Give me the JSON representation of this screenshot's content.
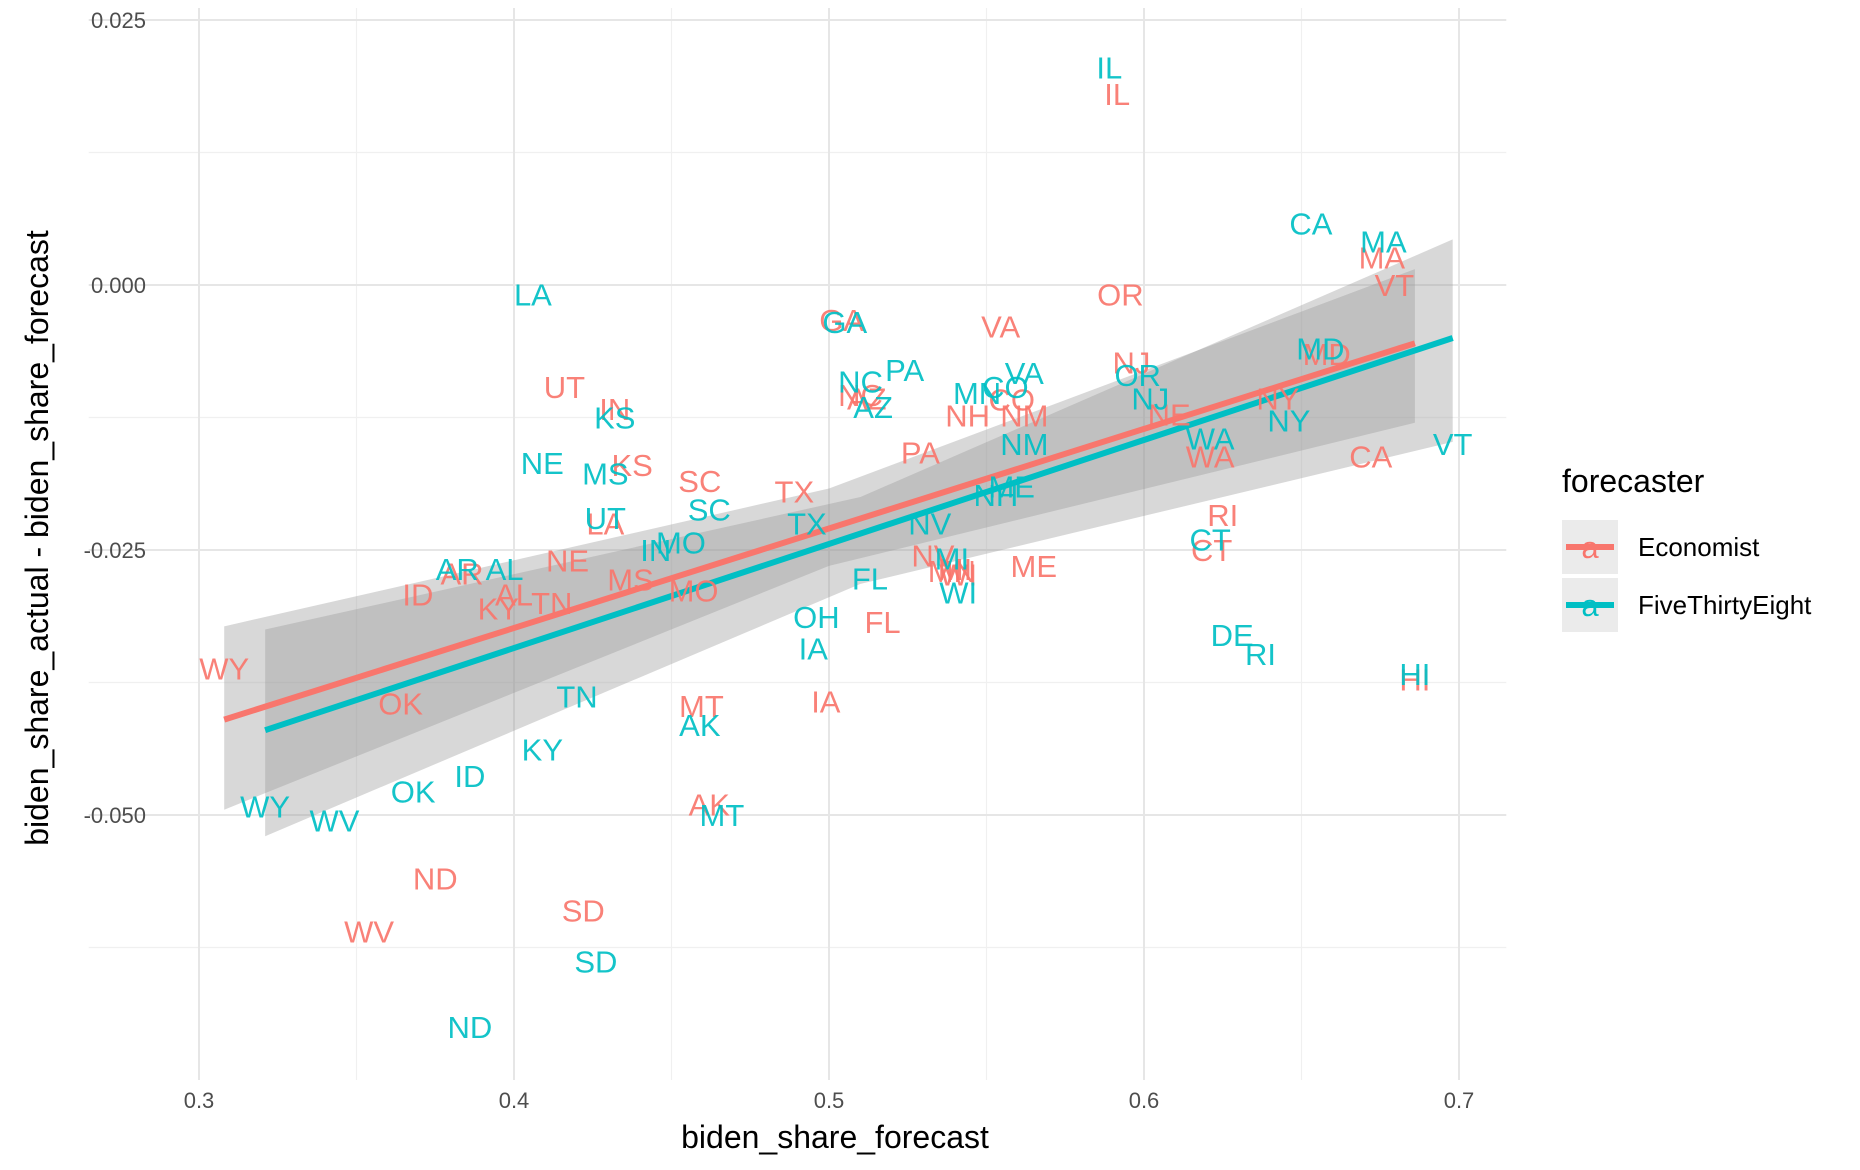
{
  "chart_data": {
    "type": "scatter",
    "xlabel": "biden_share_forecast",
    "ylabel": "biden_share_actual - biden_share_forecast",
    "xlim": [
      0.3,
      0.7
    ],
    "ylim": [
      -0.075,
      0.025
    ],
    "x_ticks": [
      {
        "value": 0.3,
        "label": "0.3"
      },
      {
        "value": 0.4,
        "label": "0.4"
      },
      {
        "value": 0.5,
        "label": "0.5"
      },
      {
        "value": 0.6,
        "label": "0.6"
      },
      {
        "value": 0.7,
        "label": "0.7"
      }
    ],
    "y_ticks": [
      {
        "value": 0.025,
        "label": "0.025"
      },
      {
        "value": 0.0,
        "label": "0.000"
      },
      {
        "value": -0.025,
        "label": "-0.025"
      },
      {
        "value": -0.05,
        "label": "-0.050"
      }
    ],
    "grid": true,
    "legend": {
      "title": "forecaster",
      "position": "right",
      "key_glyph": "a"
    },
    "series": [
      {
        "name": "Economist",
        "color": "#F8766D",
        "points": [
          {
            "label": "IL",
            "x": 0.5915,
            "y": 0.018
          },
          {
            "label": "MA",
            "x": 0.6755,
            "y": 0.0026
          },
          {
            "label": "VT",
            "x": 0.6795,
            "y": 0.0
          },
          {
            "label": "OR",
            "x": 0.5925,
            "y": -0.0009
          },
          {
            "label": "GA",
            "x": 0.504,
            "y": -0.0033
          },
          {
            "label": "VA",
            "x": 0.5545,
            "y": -0.0039
          },
          {
            "label": "MD",
            "x": 0.658,
            "y": -0.0065
          },
          {
            "label": "NJ",
            "x": 0.596,
            "y": -0.0073
          },
          {
            "label": "UT",
            "x": 0.416,
            "y": -0.0096
          },
          {
            "label": "IN",
            "x": 0.432,
            "y": -0.0117
          },
          {
            "label": "NC",
            "x": 0.51,
            "y": -0.0104
          },
          {
            "label": "AZ",
            "x": 0.512,
            "y": -0.0107
          },
          {
            "label": "CO",
            "x": 0.558,
            "y": -0.0108
          },
          {
            "label": "NY",
            "x": 0.6425,
            "y": -0.0107
          },
          {
            "label": "NE",
            "x": 0.608,
            "y": -0.0122
          },
          {
            "label": "NH",
            "x": 0.544,
            "y": -0.0123
          },
          {
            "label": "NM",
            "x": 0.562,
            "y": -0.0123
          },
          {
            "label": "PA",
            "x": 0.529,
            "y": -0.0158
          },
          {
            "label": "WA",
            "x": 0.621,
            "y": -0.0162
          },
          {
            "label": "CA",
            "x": 0.672,
            "y": -0.0162
          },
          {
            "label": "KS",
            "x": 0.4375,
            "y": -0.017
          },
          {
            "label": "SC",
            "x": 0.459,
            "y": -0.0185
          },
          {
            "label": "TX",
            "x": 0.489,
            "y": -0.0195
          },
          {
            "label": "RI",
            "x": 0.625,
            "y": -0.0217
          },
          {
            "label": "LA",
            "x": 0.429,
            "y": -0.0225
          },
          {
            "label": "CT",
            "x": 0.6215,
            "y": -0.025
          },
          {
            "label": "NV",
            "x": 0.533,
            "y": -0.0255
          },
          {
            "label": "MN",
            "x": 0.539,
            "y": -0.027
          },
          {
            "label": "MI",
            "x": 0.54,
            "y": -0.0268
          },
          {
            "label": "WI",
            "x": 0.541,
            "y": -0.0273
          },
          {
            "label": "ME",
            "x": 0.565,
            "y": -0.0265
          },
          {
            "label": "NE",
            "x": 0.417,
            "y": -0.026
          },
          {
            "label": "AR",
            "x": 0.3835,
            "y": -0.0272
          },
          {
            "label": "MS",
            "x": 0.437,
            "y": -0.0278
          },
          {
            "label": "MO",
            "x": 0.457,
            "y": -0.0288
          },
          {
            "label": "AL",
            "x": 0.4,
            "y": -0.0292
          },
          {
            "label": "ID",
            "x": 0.3695,
            "y": -0.0292
          },
          {
            "label": "KY",
            "x": 0.395,
            "y": -0.0305
          },
          {
            "label": "TN",
            "x": 0.412,
            "y": -0.03
          },
          {
            "label": "FL",
            "x": 0.517,
            "y": -0.0318
          },
          {
            "label": "HI",
            "x": 0.686,
            "y": -0.0372
          },
          {
            "label": "WY",
            "x": 0.308,
            "y": -0.0362
          },
          {
            "label": "MT",
            "x": 0.4595,
            "y": -0.0397
          },
          {
            "label": "IA",
            "x": 0.499,
            "y": -0.0393
          },
          {
            "label": "OK",
            "x": 0.364,
            "y": -0.0395
          },
          {
            "label": "AK",
            "x": 0.462,
            "y": -0.049
          },
          {
            "label": "ND",
            "x": 0.375,
            "y": -0.056
          },
          {
            "label": "SD",
            "x": 0.422,
            "y": -0.059
          },
          {
            "label": "WV",
            "x": 0.354,
            "y": -0.061
          }
        ],
        "fit": {
          "x0": 0.308,
          "y0": -0.041,
          "x1": 0.686,
          "y1": -0.0055
        }
      },
      {
        "name": "FiveThirtyEight",
        "color": "#00BFC4",
        "points": [
          {
            "label": "IL",
            "x": 0.589,
            "y": 0.0205
          },
          {
            "label": "CA",
            "x": 0.653,
            "y": 0.0058
          },
          {
            "label": "MA",
            "x": 0.676,
            "y": 0.0041
          },
          {
            "label": "LA",
            "x": 0.406,
            "y": -0.0009
          },
          {
            "label": "GA",
            "x": 0.505,
            "y": -0.0035
          },
          {
            "label": "PA",
            "x": 0.524,
            "y": -0.008
          },
          {
            "label": "VA",
            "x": 0.562,
            "y": -0.0083
          },
          {
            "label": "NC",
            "x": 0.51,
            "y": -0.0091
          },
          {
            "label": "OR",
            "x": 0.598,
            "y": -0.0085
          },
          {
            "label": "MD",
            "x": 0.656,
            "y": -0.006
          },
          {
            "label": "MN",
            "x": 0.547,
            "y": -0.0102
          },
          {
            "label": "CO",
            "x": 0.556,
            "y": -0.0096
          },
          {
            "label": "NJ",
            "x": 0.602,
            "y": -0.0107
          },
          {
            "label": "AZ",
            "x": 0.514,
            "y": -0.0115
          },
          {
            "label": "KS",
            "x": 0.432,
            "y": -0.0125
          },
          {
            "label": "NY",
            "x": 0.646,
            "y": -0.0128
          },
          {
            "label": "WA",
            "x": 0.621,
            "y": -0.0145
          },
          {
            "label": "VT",
            "x": 0.698,
            "y": -0.015
          },
          {
            "label": "NM",
            "x": 0.562,
            "y": -0.015
          },
          {
            "label": "NE",
            "x": 0.409,
            "y": -0.0168
          },
          {
            "label": "MS",
            "x": 0.429,
            "y": -0.0178
          },
          {
            "label": "ME",
            "x": 0.558,
            "y": -0.019
          },
          {
            "label": "NH",
            "x": 0.553,
            "y": -0.0198
          },
          {
            "label": "SC",
            "x": 0.462,
            "y": -0.0212
          },
          {
            "label": "UT",
            "x": 0.429,
            "y": -0.022
          },
          {
            "label": "TX",
            "x": 0.493,
            "y": -0.0225
          },
          {
            "label": "NV",
            "x": 0.532,
            "y": -0.0225
          },
          {
            "label": "CT",
            "x": 0.621,
            "y": -0.024
          },
          {
            "label": "MO",
            "x": 0.453,
            "y": -0.0243
          },
          {
            "label": "IN",
            "x": 0.445,
            "y": -0.025
          },
          {
            "label": "MI",
            "x": 0.539,
            "y": -0.0258
          },
          {
            "label": "AR",
            "x": 0.382,
            "y": -0.0268
          },
          {
            "label": "AL",
            "x": 0.397,
            "y": -0.0268
          },
          {
            "label": "FL",
            "x": 0.513,
            "y": -0.0277
          },
          {
            "label": "WI",
            "x": 0.541,
            "y": -0.029
          },
          {
            "label": "OH",
            "x": 0.496,
            "y": -0.0313
          },
          {
            "label": "DE",
            "x": 0.628,
            "y": -0.033
          },
          {
            "label": "IA",
            "x": 0.495,
            "y": -0.0343
          },
          {
            "label": "RI",
            "x": 0.637,
            "y": -0.0348
          },
          {
            "label": "HI",
            "x": 0.686,
            "y": -0.0367
          },
          {
            "label": "TN",
            "x": 0.42,
            "y": -0.0388
          },
          {
            "label": "AK",
            "x": 0.459,
            "y": -0.0415
          },
          {
            "label": "KY",
            "x": 0.409,
            "y": -0.0438
          },
          {
            "label": "ID",
            "x": 0.386,
            "y": -0.0463
          },
          {
            "label": "OK",
            "x": 0.368,
            "y": -0.0478
          },
          {
            "label": "WY",
            "x": 0.321,
            "y": -0.0492
          },
          {
            "label": "MT",
            "x": 0.466,
            "y": -0.05
          },
          {
            "label": "WV",
            "x": 0.343,
            "y": -0.0505
          },
          {
            "label": "SD",
            "x": 0.426,
            "y": -0.0638
          },
          {
            "label": "ND",
            "x": 0.386,
            "y": -0.07
          }
        ],
        "fit": {
          "x0": 0.321,
          "y0": -0.042,
          "x1": 0.698,
          "y1": -0.005
        }
      }
    ],
    "confidence_bands": [
      {
        "series": "Economist",
        "upper": [
          [
            0.308,
            -0.0322
          ],
          [
            0.5,
            -0.0192
          ],
          [
            0.686,
            0.0015
          ]
        ],
        "lower": [
          [
            0.308,
            -0.0495
          ],
          [
            0.5,
            -0.0265
          ],
          [
            0.686,
            -0.013
          ]
        ]
      },
      {
        "series": "FiveThirtyEight",
        "upper": [
          [
            0.321,
            -0.0325
          ],
          [
            0.51,
            -0.02
          ],
          [
            0.698,
            0.0043
          ]
        ],
        "lower": [
          [
            0.321,
            -0.052
          ],
          [
            0.51,
            -0.0282
          ],
          [
            0.698,
            -0.0148
          ]
        ]
      }
    ]
  }
}
